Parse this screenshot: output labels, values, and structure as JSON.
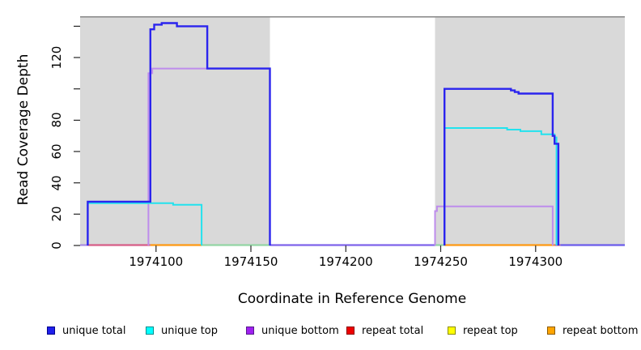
{
  "figure": {
    "xlabel": "Coordinate in Reference Genome",
    "ylabel": "Read Coverage Depth"
  },
  "chart_data": {
    "type": "line",
    "subtype": "step-coverage-plot",
    "title": "",
    "xlabel": "Coordinate in Reference Genome",
    "ylabel": "Read Coverage Depth",
    "xlim": [
      1974060,
      1974347
    ],
    "ylim": [
      0,
      146.4
    ],
    "x_ticks": [
      1974100,
      1974150,
      1974200,
      1974250,
      1974300
    ],
    "y_ticks": [
      {
        "v": 0,
        "label": "0"
      },
      {
        "v": 20,
        "label": "20"
      },
      {
        "v": 40,
        "label": "40"
      },
      {
        "v": 60,
        "label": "60"
      },
      {
        "v": 80,
        "label": "80"
      },
      {
        "v": 100,
        "label": ""
      },
      {
        "v": 120,
        "label": "120"
      },
      {
        "v": 140,
        "label": ""
      }
    ],
    "grid": false,
    "legend_position": "bottom",
    "background_color": "#FFFFFF",
    "highlight_color": "#D9D9D9",
    "highlight_regions": [
      [
        1974060,
        1974160
      ],
      [
        1974247,
        1974347
      ]
    ],
    "top_rule": {
      "value": 146.4,
      "color": "#8E8E8E"
    },
    "baseline_segments": [
      {
        "x1": 1974060,
        "x2": 1974064,
        "color": "#A88BE2"
      },
      {
        "x1": 1974064,
        "x2": 1974097,
        "color": "#D65C86"
      },
      {
        "x1": 1974097,
        "x2": 1974124,
        "color": "#FF9912"
      },
      {
        "x1": 1974124,
        "x2": 1974160,
        "color": "#93D5A4"
      },
      {
        "x1": 1974160,
        "x2": 1974247,
        "color": "#7E63EA"
      },
      {
        "x1": 1974247,
        "x2": 1974252,
        "color": "#93D5A4"
      },
      {
        "x1": 1974252,
        "x2": 1974310,
        "color": "#FF9912"
      },
      {
        "x1": 1974310,
        "x2": 1974313,
        "color": "#D65C86"
      },
      {
        "x1": 1974313,
        "x2": 1974347,
        "color": "#6A5BEB"
      }
    ],
    "series": [
      {
        "name": "unique bottom",
        "color": "#BE8CEC",
        "width": 2,
        "paths": [
          [
            [
              1974096,
              0
            ],
            [
              1974096,
              110
            ],
            [
              1974098,
              110
            ],
            [
              1974098,
              113
            ],
            [
              1974160,
              113
            ],
            [
              1974160,
              0
            ]
          ],
          [
            [
              1974247,
              0
            ],
            [
              1974247,
              22
            ],
            [
              1974248,
              22
            ],
            [
              1974248,
              25
            ],
            [
              1974309,
              25
            ],
            [
              1974309,
              0
            ]
          ]
        ]
      },
      {
        "name": "unique top",
        "color": "#22E2EE",
        "width": 2,
        "paths": [
          [
            [
              1974064,
              0
            ],
            [
              1974064,
              27
            ],
            [
              1974109,
              27
            ],
            [
              1974109,
              26
            ],
            [
              1974124,
              26
            ],
            [
              1974124,
              0
            ]
          ],
          [
            [
              1974252,
              0
            ],
            [
              1974252,
              75
            ],
            [
              1974285,
              75
            ],
            [
              1974285,
              74
            ],
            [
              1974292,
              74
            ],
            [
              1974292,
              73
            ],
            [
              1974303,
              73
            ],
            [
              1974303,
              71
            ],
            [
              1974310,
              71
            ],
            [
              1974310,
              69
            ],
            [
              1974311,
              69
            ],
            [
              1974311,
              0
            ]
          ]
        ]
      },
      {
        "name": "unique total",
        "color": "#2B24EE",
        "width": 2.4,
        "paths": [
          [
            [
              1974064,
              0
            ],
            [
              1974064,
              28
            ],
            [
              1974097,
              28
            ],
            [
              1974097,
              138
            ],
            [
              1974099,
              138
            ],
            [
              1974099,
              141
            ],
            [
              1974103,
              141
            ],
            [
              1974103,
              142
            ],
            [
              1974111,
              142
            ],
            [
              1974111,
              140
            ],
            [
              1974127,
              140
            ],
            [
              1974127,
              113
            ],
            [
              1974160,
              113
            ],
            [
              1974160,
              0
            ]
          ],
          [
            [
              1974252,
              0
            ],
            [
              1974252,
              100
            ],
            [
              1974287,
              100
            ],
            [
              1974287,
              99
            ],
            [
              1974289,
              99
            ],
            [
              1974289,
              98
            ],
            [
              1974291,
              98
            ],
            [
              1974291,
              97
            ],
            [
              1974309,
              97
            ],
            [
              1974309,
              70
            ],
            [
              1974310,
              70
            ],
            [
              1974310,
              65
            ],
            [
              1974312,
              65
            ],
            [
              1974312,
              0
            ]
          ]
        ]
      }
    ],
    "legend": [
      {
        "label": "unique total",
        "fill": "#1F1FEC",
        "border": "#00008B"
      },
      {
        "label": "unique top",
        "fill": "#00FFFF",
        "border": "#008B8B"
      },
      {
        "label": "unique bottom",
        "fill": "#A020F0",
        "border": "#551A8B"
      },
      {
        "label": "repeat total",
        "fill": "#EE0000",
        "border": "#8B0000"
      },
      {
        "label": "repeat top",
        "fill": "#FFFF00",
        "border": "#8B8B00"
      },
      {
        "label": "repeat bottom",
        "fill": "#FFA500",
        "border": "#8B5A00"
      }
    ]
  }
}
